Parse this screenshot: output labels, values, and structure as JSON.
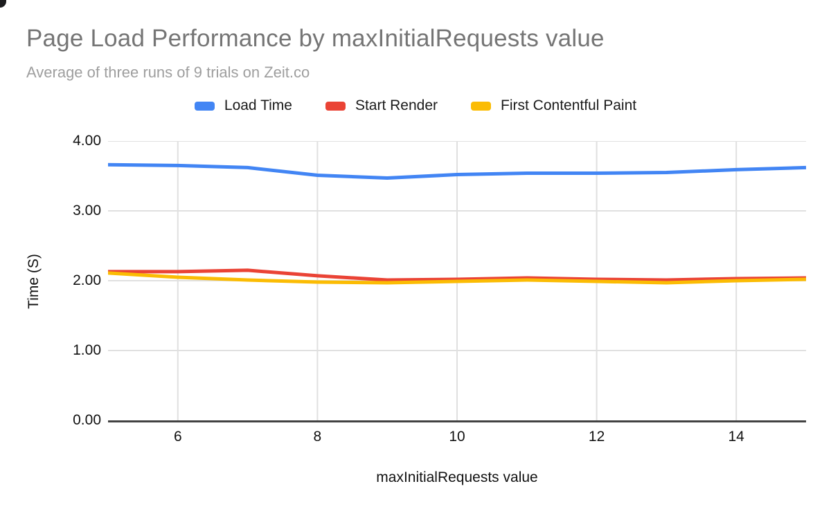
{
  "header": {
    "title": "Page Load Performance by maxInitialRequests value",
    "subtitle": "Average of three runs of 9 trials on Zeit.co",
    "title_color": "#757575",
    "subtitle_color": "#9e9e9e"
  },
  "legend": {
    "position": "top",
    "items": [
      {
        "label": "Load Time",
        "color": "#4285f4"
      },
      {
        "label": "Start Render",
        "color": "#ea4335"
      },
      {
        "label": "First Contentful Paint",
        "color": "#fbbc04"
      }
    ]
  },
  "chart_data": {
    "type": "line",
    "title": "Page Load Performance by maxInitialRequests value",
    "subtitle": "Average of three runs of 9 trials on Zeit.co",
    "xlabel": "maxInitialRequests value",
    "ylabel": "Time (S)",
    "xlim": [
      5,
      15
    ],
    "ylim": [
      0,
      4
    ],
    "grid": true,
    "x": [
      5,
      6,
      7,
      8,
      9,
      10,
      11,
      12,
      13,
      14,
      15
    ],
    "series": [
      {
        "name": "Load Time",
        "color": "#4285f4",
        "values": [
          3.66,
          3.65,
          3.62,
          3.51,
          3.47,
          3.52,
          3.54,
          3.54,
          3.55,
          3.59,
          3.62
        ]
      },
      {
        "name": "Start Render",
        "color": "#ea4335",
        "values": [
          2.13,
          2.13,
          2.15,
          2.07,
          2.01,
          2.02,
          2.04,
          2.02,
          2.01,
          2.03,
          2.04
        ]
      },
      {
        "name": "First Contentful Paint",
        "color": "#fbbc04",
        "values": [
          2.11,
          2.05,
          2.01,
          1.98,
          1.97,
          1.99,
          2.01,
          1.99,
          1.97,
          2.0,
          2.02
        ]
      }
    ],
    "xticks": [
      "6",
      "8",
      "10",
      "12",
      "14"
    ],
    "yticks": [
      "4.00",
      "3.00",
      "2.00",
      "1.00",
      "0.00"
    ],
    "colors": {
      "gridline": "#e0e0e0",
      "axis_line": "#424242",
      "tick_text": "#111111"
    }
  }
}
